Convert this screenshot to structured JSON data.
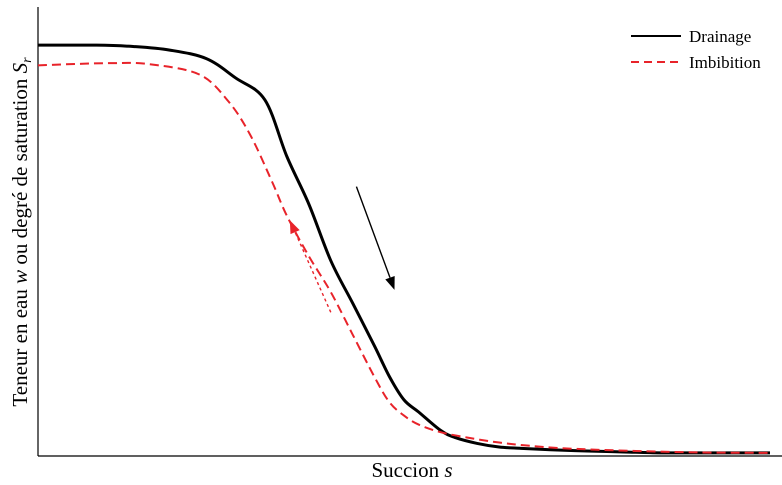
{
  "chart_data": {
    "type": "line",
    "title": "",
    "xlabel": "Succion s",
    "ylabel_prefix": "Teneur en eau ",
    "ylabel_w": "w",
    "ylabel_mid": " ou degré de saturation ",
    "ylabel_S": "S",
    "ylabel_sub": "r",
    "xlabel_main": "Succion ",
    "xlabel_var": "s",
    "xlim": [
      0,
      100
    ],
    "ylim": [
      0,
      100
    ],
    "grid": false,
    "ticks": false,
    "legend": {
      "position": "top-right"
    },
    "series": [
      {
        "name": "Drainage",
        "color": "#000000",
        "dash": "solid",
        "x": [
          0,
          8,
          13,
          18,
          23,
          27,
          31,
          34,
          37,
          40,
          43,
          46,
          48,
          50,
          52,
          55,
          57,
          60,
          63,
          66,
          70,
          75,
          80,
          85,
          90,
          95,
          100
        ],
        "y": [
          91.5,
          91.5,
          91.2,
          90.4,
          88.5,
          84.2,
          79.3,
          66.7,
          56.1,
          43.5,
          34.0,
          24.4,
          17.7,
          12.5,
          9.8,
          5.7,
          4.1,
          2.8,
          2.0,
          1.7,
          1.4,
          1.1,
          0.9,
          0.7,
          0.7,
          0.7,
          0.7
        ]
      },
      {
        "name": "Imbibition",
        "color": "#e8232a",
        "dash": "dashed",
        "x": [
          0,
          5,
          10,
          15,
          22,
          26,
          29,
          32,
          34,
          37,
          40,
          43,
          46,
          48,
          50,
          52,
          55,
          59,
          63,
          67,
          72,
          80,
          90,
          100
        ],
        "y": [
          87.0,
          87.3,
          87.5,
          87.3,
          85.0,
          79.0,
          71.5,
          61.0,
          53.5,
          44.5,
          36.5,
          27.0,
          17.5,
          12.0,
          9.0,
          7.0,
          5.3,
          4.0,
          3.0,
          2.3,
          1.7,
          1.2,
          0.8,
          0.7
        ]
      }
    ],
    "annotations": [
      {
        "type": "arrow",
        "series": "Drainage",
        "direction": "down",
        "x1": 43.5,
        "y1": 60.0,
        "x2": 48.7,
        "y2": 37.0,
        "color": "#000000",
        "dash": "solid"
      },
      {
        "type": "arrow",
        "series": "Imbibition",
        "direction": "up",
        "x1": 40.0,
        "y1": 32.0,
        "x2": 34.4,
        "y2": 52.5,
        "color": "#e8232a",
        "dash": "dotted"
      }
    ]
  }
}
